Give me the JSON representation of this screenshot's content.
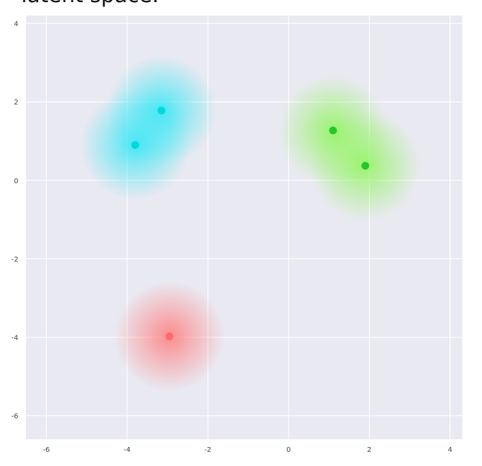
{
  "caption": "latent space.",
  "chart_data": {
    "type": "scatter",
    "title": "",
    "xlabel": "",
    "ylabel": "",
    "xlim": [
      -6.5,
      4.3
    ],
    "ylim": [
      -6.6,
      4.2
    ],
    "xticks": [
      "-6",
      "-4",
      "-2",
      "0",
      "2",
      "4"
    ],
    "yticks": [
      "4",
      "2",
      "0",
      "-2",
      "-4",
      "-6"
    ],
    "xtick_values": [
      -6,
      -4,
      -2,
      0,
      2,
      4
    ],
    "ytick_values": [
      4,
      2,
      0,
      -2,
      -4,
      -6
    ],
    "grid": true,
    "background": "#e9e9f1",
    "series": [
      {
        "color": "#00d8e0",
        "glow": "#2ee8f5",
        "points": [
          {
            "x": -3.8,
            "y": 0.9
          },
          {
            "x": -3.15,
            "y": 1.78
          }
        ]
      },
      {
        "color": "#22c928",
        "glow": "#8ef55a",
        "points": [
          {
            "x": 1.1,
            "y": 1.27
          },
          {
            "x": 1.9,
            "y": 0.37
          }
        ]
      },
      {
        "color": "#ff6a6a",
        "glow": "#ff7b7b",
        "points": [
          {
            "x": -2.95,
            "y": -3.98
          }
        ]
      }
    ]
  }
}
